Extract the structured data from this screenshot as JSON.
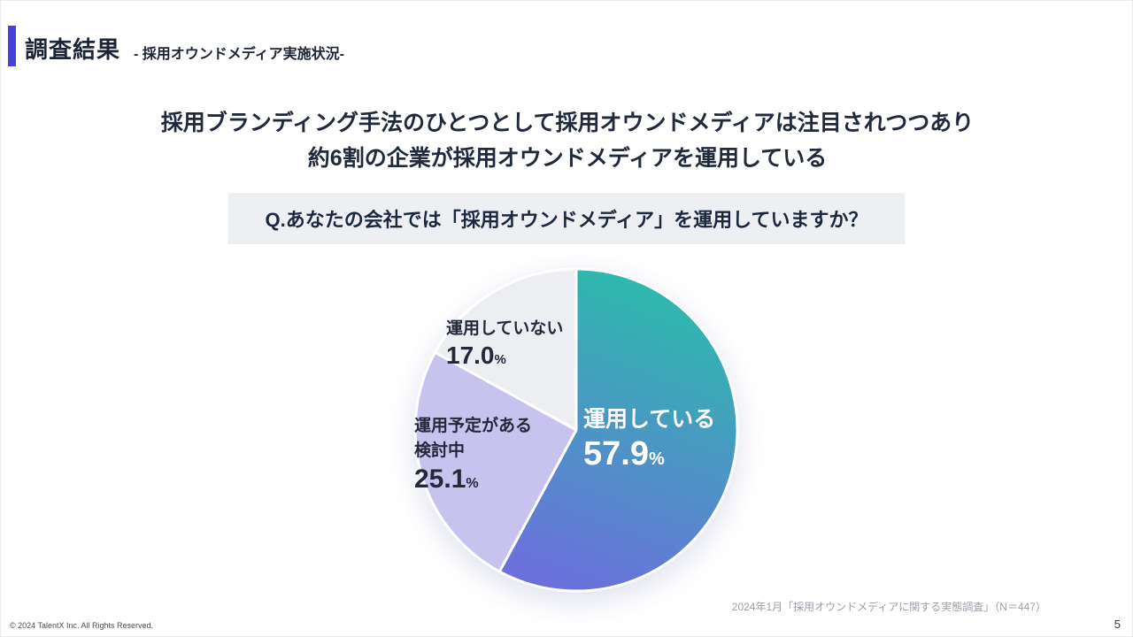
{
  "header": {
    "title": "調査結果",
    "subtitle": "- 採用オウンドメディア実施状況-"
  },
  "headline": "採用ブランディング手法のひとつとして採用オウンドメディアは注目されつつあり\n約6割の企業が採用オウンドメディアを運用している",
  "question": "Q.あなたの会社では「採用オウンドメディア」を運用していますか？",
  "chart_data": {
    "type": "pie",
    "title": "Q.あなたの会社では「採用オウンドメディア」を運用していますか？",
    "start_angle_deg": 0,
    "direction": "clockwise",
    "slices": [
      {
        "label": "運用している",
        "value": 57.9,
        "value_display": "57.9",
        "unit": "%",
        "colors": [
          "#2bbcab",
          "#6b70dc"
        ],
        "text_color": "#ffffff"
      },
      {
        "label": "運用予定がある\n検討中",
        "value": 25.1,
        "value_display": "25.1",
        "unit": "%",
        "colors": [
          "#c8c3ee"
        ],
        "text_color": "#23283a"
      },
      {
        "label": "運用していない",
        "value": 17.0,
        "value_display": "17.0",
        "unit": "%",
        "colors": [
          "#eceef2"
        ],
        "text_color": "#23283a"
      }
    ],
    "slice_border_color": "#ffffff"
  },
  "footer": {
    "source": "2024年1月「採用オウンドメディアに関する実態調査」（N＝447）",
    "copyright": "© 2024 TalentX Inc. All Rights Reserved.",
    "page_number": "5"
  }
}
